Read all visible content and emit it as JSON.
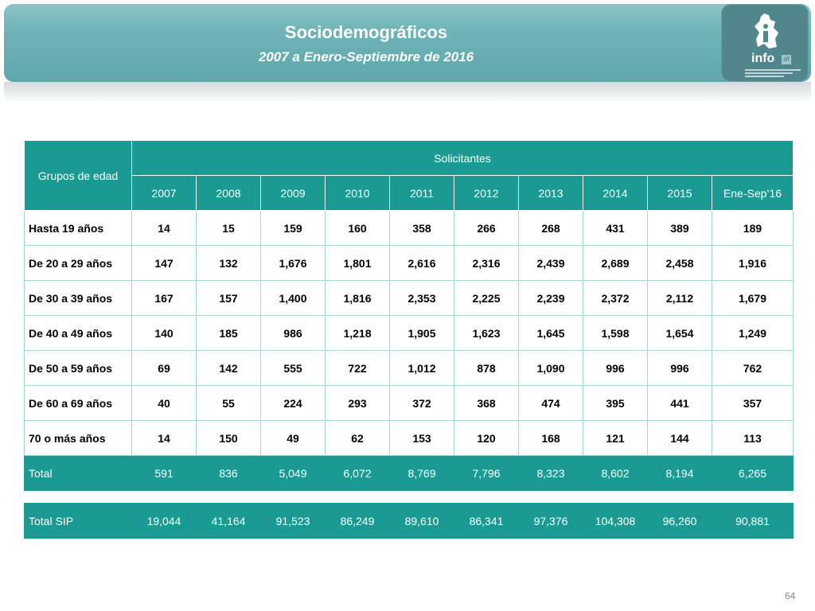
{
  "header": {
    "title": "Sociodemográficos",
    "subtitle": "2007 a Enero-Septiembre de 2016",
    "logo_text": "info",
    "logo_tag": "df"
  },
  "table": {
    "group_header": "Grupos de edad",
    "span_header": "Solicitantes",
    "years": [
      "2007",
      "2008",
      "2009",
      "2010",
      "2011",
      "2012",
      "2013",
      "2014",
      "2015",
      "Ene-Sep’16"
    ],
    "rows": [
      {
        "label": "Hasta 19 años",
        "values": [
          "14",
          "15",
          "159",
          "160",
          "358",
          "266",
          "268",
          "431",
          "389",
          "189"
        ]
      },
      {
        "label": "De 20 a 29 años",
        "values": [
          "147",
          "132",
          "1,676",
          "1,801",
          "2,616",
          "2,316",
          "2,439",
          "2,689",
          "2,458",
          "1,916"
        ]
      },
      {
        "label": "De 30 a 39 años",
        "values": [
          "167",
          "157",
          "1,400",
          "1,816",
          "2,353",
          "2,225",
          "2,239",
          "2,372",
          "2,112",
          "1,679"
        ]
      },
      {
        "label": "De 40 a 49 años",
        "values": [
          "140",
          "185",
          "986",
          "1,218",
          "1,905",
          "1,623",
          "1,645",
          "1,598",
          "1,654",
          "1,249"
        ]
      },
      {
        "label": "De 50 a 59 años",
        "values": [
          "69",
          "142",
          "555",
          "722",
          "1,012",
          "878",
          "1,090",
          "996",
          "996",
          "762"
        ]
      },
      {
        "label": "De 60 a 69 años",
        "values": [
          "40",
          "55",
          "224",
          "293",
          "372",
          "368",
          "474",
          "395",
          "441",
          "357"
        ]
      },
      {
        "label": "70 o más años",
        "values": [
          "14",
          "150",
          "49",
          "62",
          "153",
          "120",
          "168",
          "121",
          "144",
          "113"
        ]
      }
    ],
    "total": {
      "label": "Total",
      "values": [
        "591",
        "836",
        "5,049",
        "6,072",
        "8,769",
        "7,796",
        "8,323",
        "8,602",
        "8,194",
        "6,265"
      ]
    }
  },
  "sip": {
    "label": "Total SIP",
    "values": [
      "19,044",
      "41,164",
      "91,523",
      "86,249",
      "89,610",
      "86,341",
      "97,376",
      "104,308",
      "96,260",
      "90,881"
    ]
  },
  "page_number": "64",
  "colors": {
    "header": "#6fb3b7",
    "table_header": "#1b9a93",
    "logo_bg": "#51868c"
  }
}
